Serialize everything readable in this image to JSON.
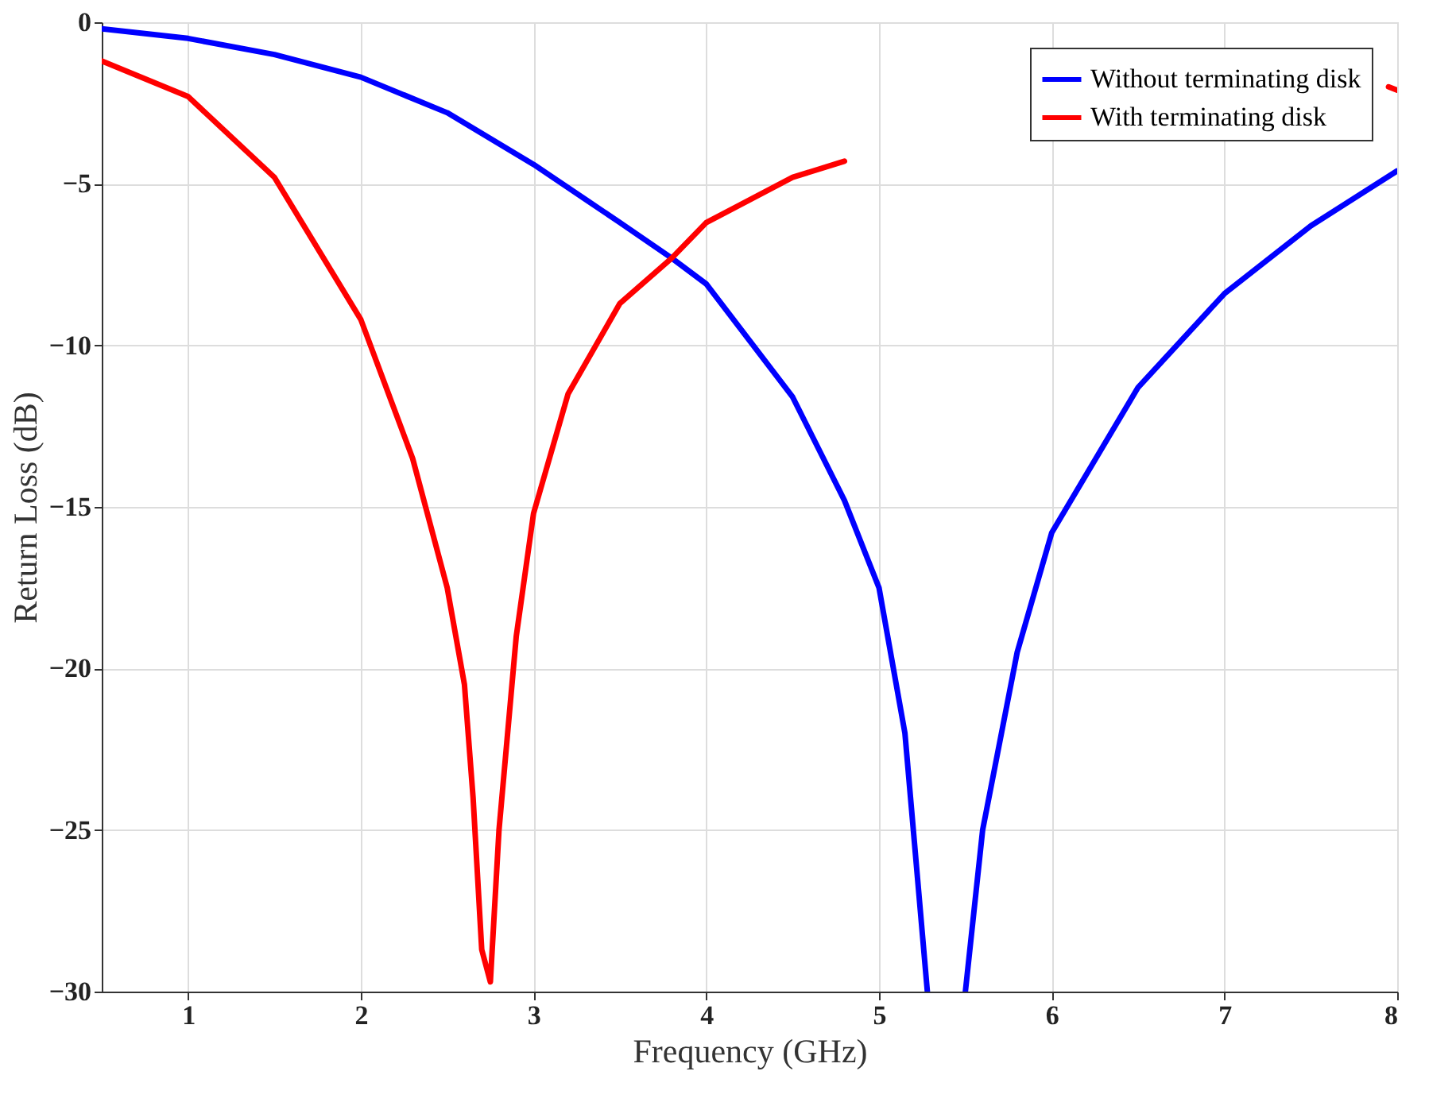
{
  "chart_data": {
    "type": "line",
    "xlabel": "Frequency (GHz)",
    "ylabel": "Return Loss (dB)",
    "xlim": [
      0.5,
      8
    ],
    "xticks": [
      1,
      2,
      3,
      4,
      5,
      6,
      7,
      8
    ],
    "ylim": [
      -30,
      0
    ],
    "yticks": [
      -30,
      -25,
      -20,
      -15,
      -10,
      -5,
      0
    ],
    "grid": true,
    "legend": "top right",
    "line_style": "solid",
    "marker": "none",
    "series": [
      {
        "name": "Without terminating disk",
        "color": "#0000ff",
        "x": [
          0.5,
          1,
          1.5,
          2,
          2.5,
          3,
          3.5,
          3.8,
          4,
          4.5,
          4.8,
          5,
          5.15,
          5.28,
          5.4,
          5.5,
          5.6,
          5.8,
          6,
          6.5,
          7,
          7.5,
          8
        ],
        "values": [
          -0.2,
          -0.5,
          -1,
          -1.7,
          -2.8,
          -4.4,
          -6.2,
          -7.3,
          -8.1,
          -11.6,
          -14.8,
          -17.5,
          -22,
          -30,
          null,
          -30,
          -25,
          -19.5,
          -15.8,
          -11.3,
          -8.4,
          -6.3,
          -4.6
        ]
      },
      {
        "name": "With terminating disk",
        "color": "#ff0000",
        "x": [
          0.5,
          1,
          1.5,
          2,
          2.3,
          2.5,
          2.6,
          2.65,
          2.7,
          2.75,
          2.8,
          2.9,
          3,
          3.2,
          3.5,
          3.8,
          4,
          4.5,
          4.8,
          5.5,
          7.9,
          7.95,
          8
        ],
        "values": [
          -1.2,
          -2.3,
          -4.8,
          -9.2,
          -13.5,
          -17.5,
          -20.5,
          -24,
          -28.7,
          -29.7,
          -25,
          -19,
          -15.2,
          -11.5,
          -8.7,
          -7.3,
          -6.2,
          -4.8,
          -4.3,
          null,
          null,
          -2.0,
          -2.1
        ]
      }
    ]
  }
}
